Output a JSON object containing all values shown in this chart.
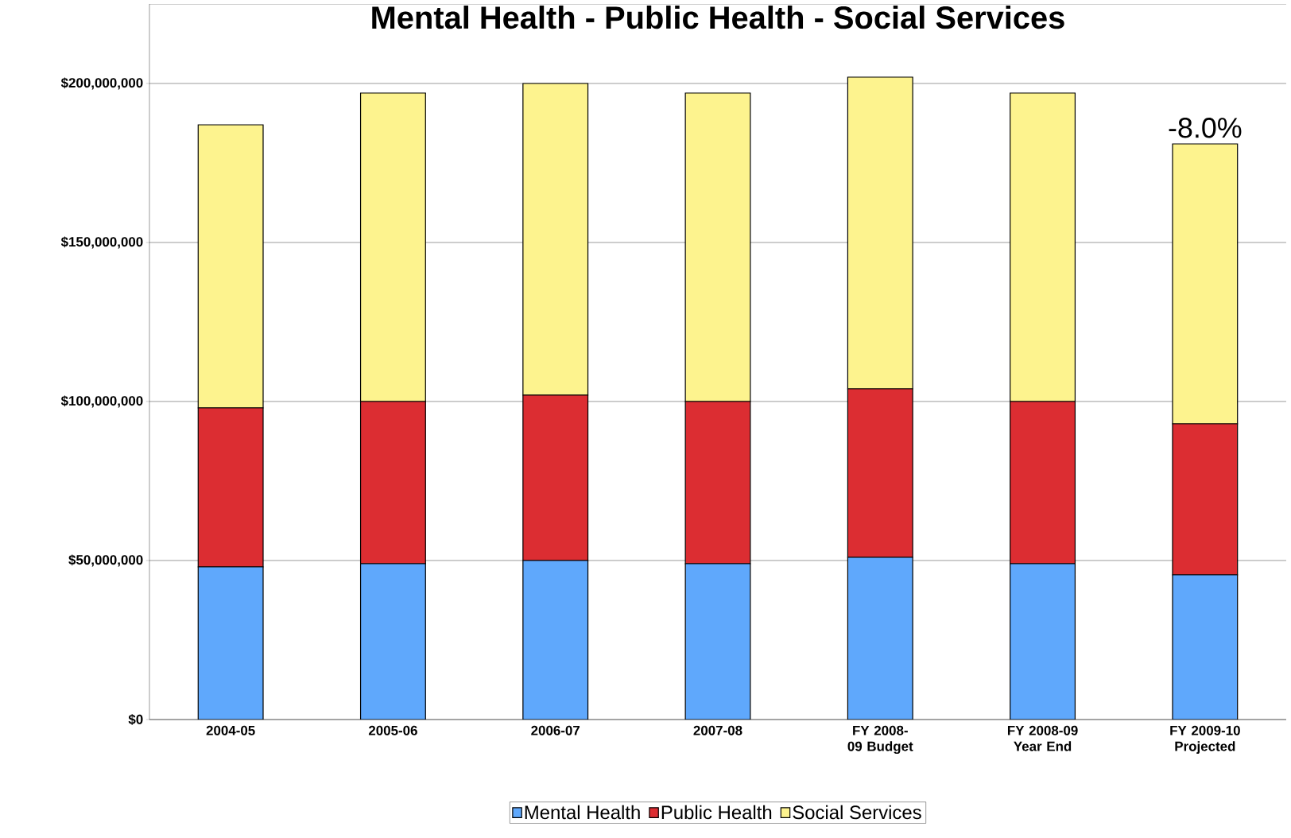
{
  "chart_data": {
    "type": "bar",
    "stacked": true,
    "title": "Mental Health - Public Health -  Social Services",
    "categories": [
      "2004-05",
      "2005-06",
      "2006-07",
      "2007-08",
      "FY 2008-09 Budget",
      "FY 2008-09 Year End",
      "FY 2009-10 Projected"
    ],
    "series": [
      {
        "name": "Mental Health",
        "color": "#5fa8fc",
        "values": [
          48000000,
          49000000,
          50000000,
          49000000,
          51000000,
          49000000,
          45500000
        ]
      },
      {
        "name": "Public Health",
        "color": "#dc2d32",
        "values": [
          50000000,
          51000000,
          52000000,
          51000000,
          53000000,
          51000000,
          47500000
        ]
      },
      {
        "name": "Social Services",
        "color": "#fdf38e",
        "values": [
          89000000,
          97000000,
          98000000,
          97000000,
          98000000,
          97000000,
          88000000
        ]
      }
    ],
    "ylim": [
      0,
      225000000
    ],
    "yticks": [
      {
        "value": 0,
        "label": "$0"
      },
      {
        "value": 50000000,
        "label": "$50,000,000"
      },
      {
        "value": 100000000,
        "label": "$100,000,000"
      },
      {
        "value": 150000000,
        "label": "$150,000,000"
      },
      {
        "value": 200000000,
        "label": "$200,000,000"
      }
    ],
    "grid": "y",
    "legend": "bottom",
    "annotations": [
      {
        "text": "-8.0%",
        "x": "FY 2009-10 Projected",
        "y": 181000000
      }
    ]
  }
}
